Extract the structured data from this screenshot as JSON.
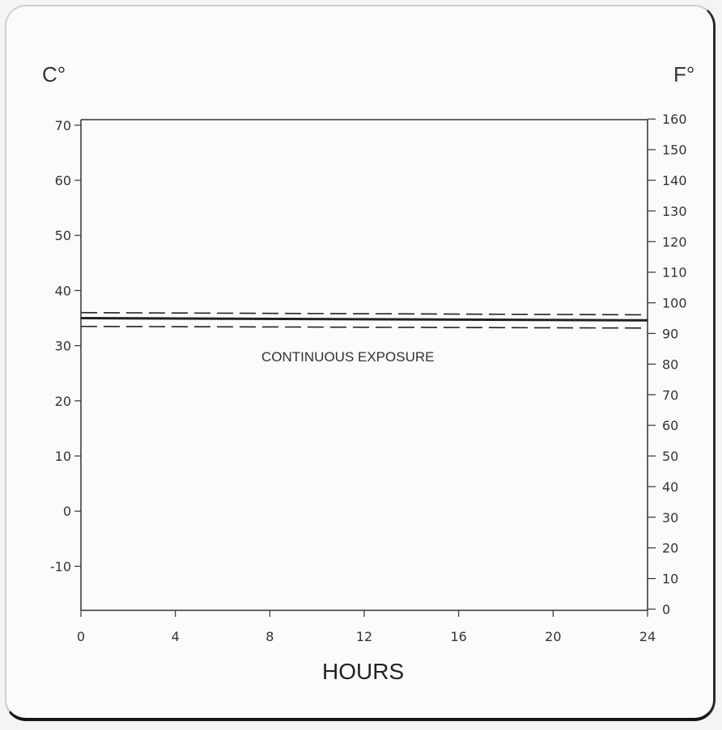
{
  "chart_data": {
    "type": "line",
    "left_unit_label": "C°",
    "right_unit_label": "F°",
    "xlabel": "HOURS",
    "x_ticks": [
      0,
      4,
      8,
      12,
      16,
      20,
      24
    ],
    "xlim": [
      0,
      24
    ],
    "left_ticks": [
      70,
      60,
      50,
      40,
      30,
      20,
      10,
      0,
      -10
    ],
    "ylim_celsius": [
      -18,
      71
    ],
    "right_ticks": [
      160,
      150,
      140,
      130,
      120,
      110,
      100,
      90,
      80,
      70,
      60,
      50,
      40,
      30,
      20,
      10,
      0
    ],
    "annotation": "CONTINUOUS EXPOSURE",
    "grid": false,
    "series": [
      {
        "style": "dashed",
        "x": [
          0,
          24
        ],
        "y": [
          36,
          35.6
        ]
      },
      {
        "style": "solid",
        "x": [
          0,
          24
        ],
        "y": [
          35,
          34.6
        ]
      },
      {
        "style": "dashed",
        "x": [
          0,
          24
        ],
        "y": [
          33.5,
          33.2
        ]
      }
    ]
  }
}
